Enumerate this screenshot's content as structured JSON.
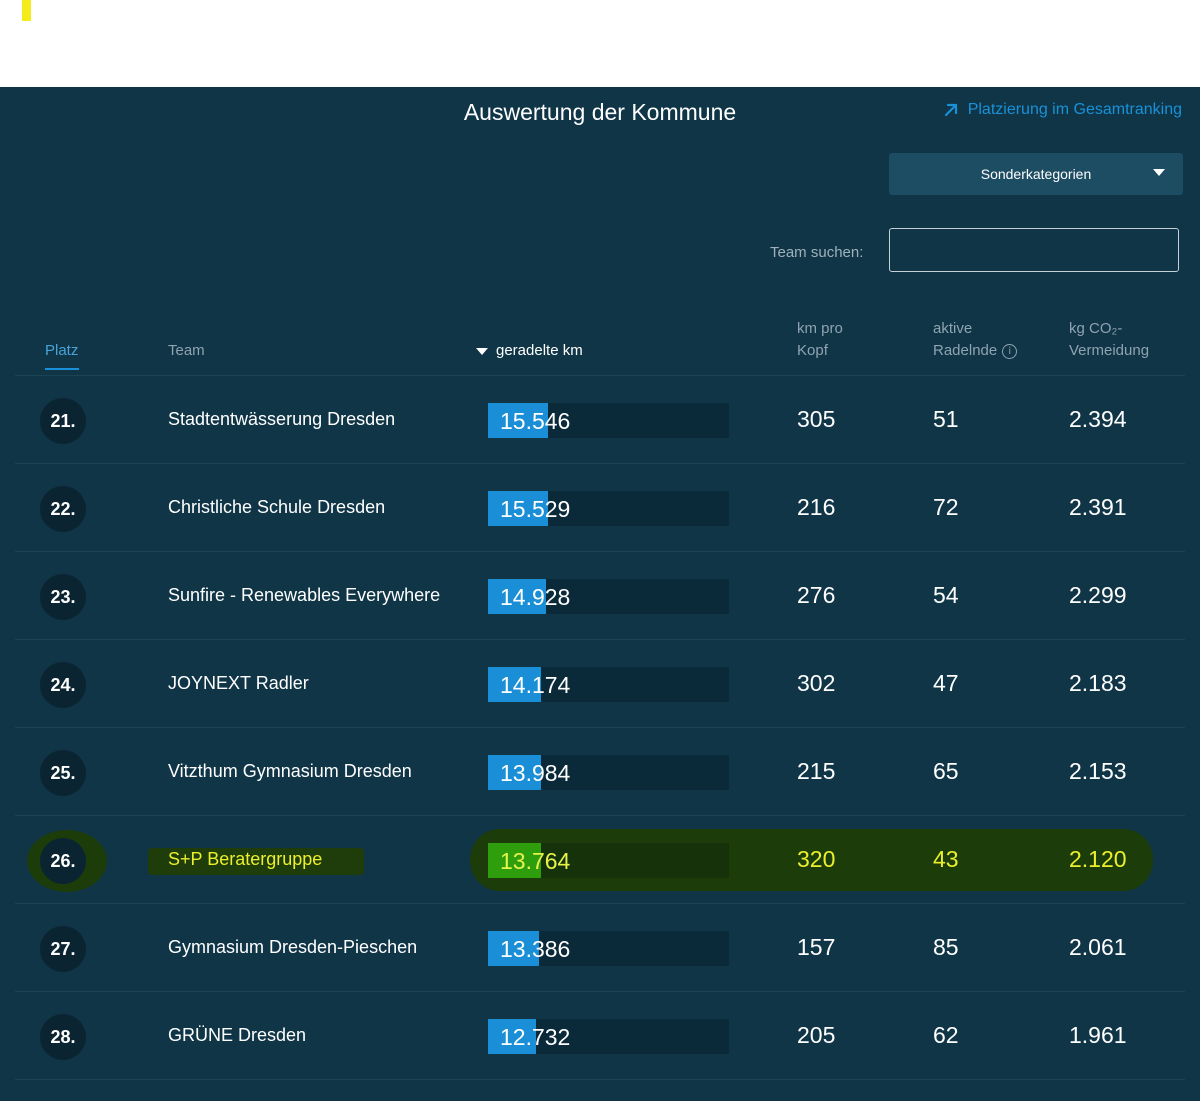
{
  "page": {
    "title": "Auswertung der Kommune",
    "ranking_link": "Platzierung im Gesamtranking",
    "dropdown_label": "Sonderkategorien",
    "search_label": "Team suchen:",
    "search_value": "",
    "search_placeholder": ""
  },
  "colors": {
    "background": "#0f3547",
    "accent": "#1991d8",
    "highlight": "#ebef2d"
  },
  "table": {
    "headers": {
      "rank": "Platz",
      "team": "Team",
      "km": "geradelte km",
      "km_per_head_1": "km pro",
      "km_per_head_2": "Kopf",
      "active_1": "aktive",
      "active_2": "Radelnde",
      "co2_1": "kg CO₂-",
      "co2_2": "Vermeidung"
    },
    "sort": {
      "column": "geradelte km",
      "direction": "desc"
    },
    "rows": [
      {
        "rank": "21.",
        "team": "Stadtentwässerung Dresden",
        "km": "15.546",
        "km_fill": 0.25,
        "km_per_head": "305",
        "active": "51",
        "co2": "2.394",
        "highlight": false
      },
      {
        "rank": "22.",
        "team": "Christliche Schule Dresden",
        "km": "15.529",
        "km_fill": 0.25,
        "km_per_head": "216",
        "active": "72",
        "co2": "2.391",
        "highlight": false
      },
      {
        "rank": "23.",
        "team": "Sunfire - Renewables Everywhere",
        "km": "14.928",
        "km_fill": 0.24,
        "km_per_head": "276",
        "active": "54",
        "co2": "2.299",
        "highlight": false
      },
      {
        "rank": "24.",
        "team": "JOYNEXT Radler",
        "km": "14.174",
        "km_fill": 0.22,
        "km_per_head": "302",
        "active": "47",
        "co2": "2.183",
        "highlight": false
      },
      {
        "rank": "25.",
        "team": "Vitzthum Gymnasium Dresden",
        "km": "13.984",
        "km_fill": 0.22,
        "km_per_head": "215",
        "active": "65",
        "co2": "2.153",
        "highlight": false
      },
      {
        "rank": "26.",
        "team": "S+P Beratergruppe",
        "km": "13.764",
        "km_fill": 0.22,
        "km_per_head": "320",
        "active": "43",
        "co2": "2.120",
        "highlight": true
      },
      {
        "rank": "27.",
        "team": "Gymnasium Dresden-Pieschen",
        "km": "13.386",
        "km_fill": 0.21,
        "km_per_head": "157",
        "active": "85",
        "co2": "2.061",
        "highlight": false
      },
      {
        "rank": "28.",
        "team": "GRÜNE Dresden",
        "km": "12.732",
        "km_fill": 0.2,
        "km_per_head": "205",
        "active": "62",
        "co2": "1.961",
        "highlight": false
      }
    ]
  },
  "icons": {
    "ranking_link": "arrow-up-right-icon",
    "dropdown": "caret-down-icon",
    "sort": "sort-desc-icon",
    "info": "info-icon"
  }
}
